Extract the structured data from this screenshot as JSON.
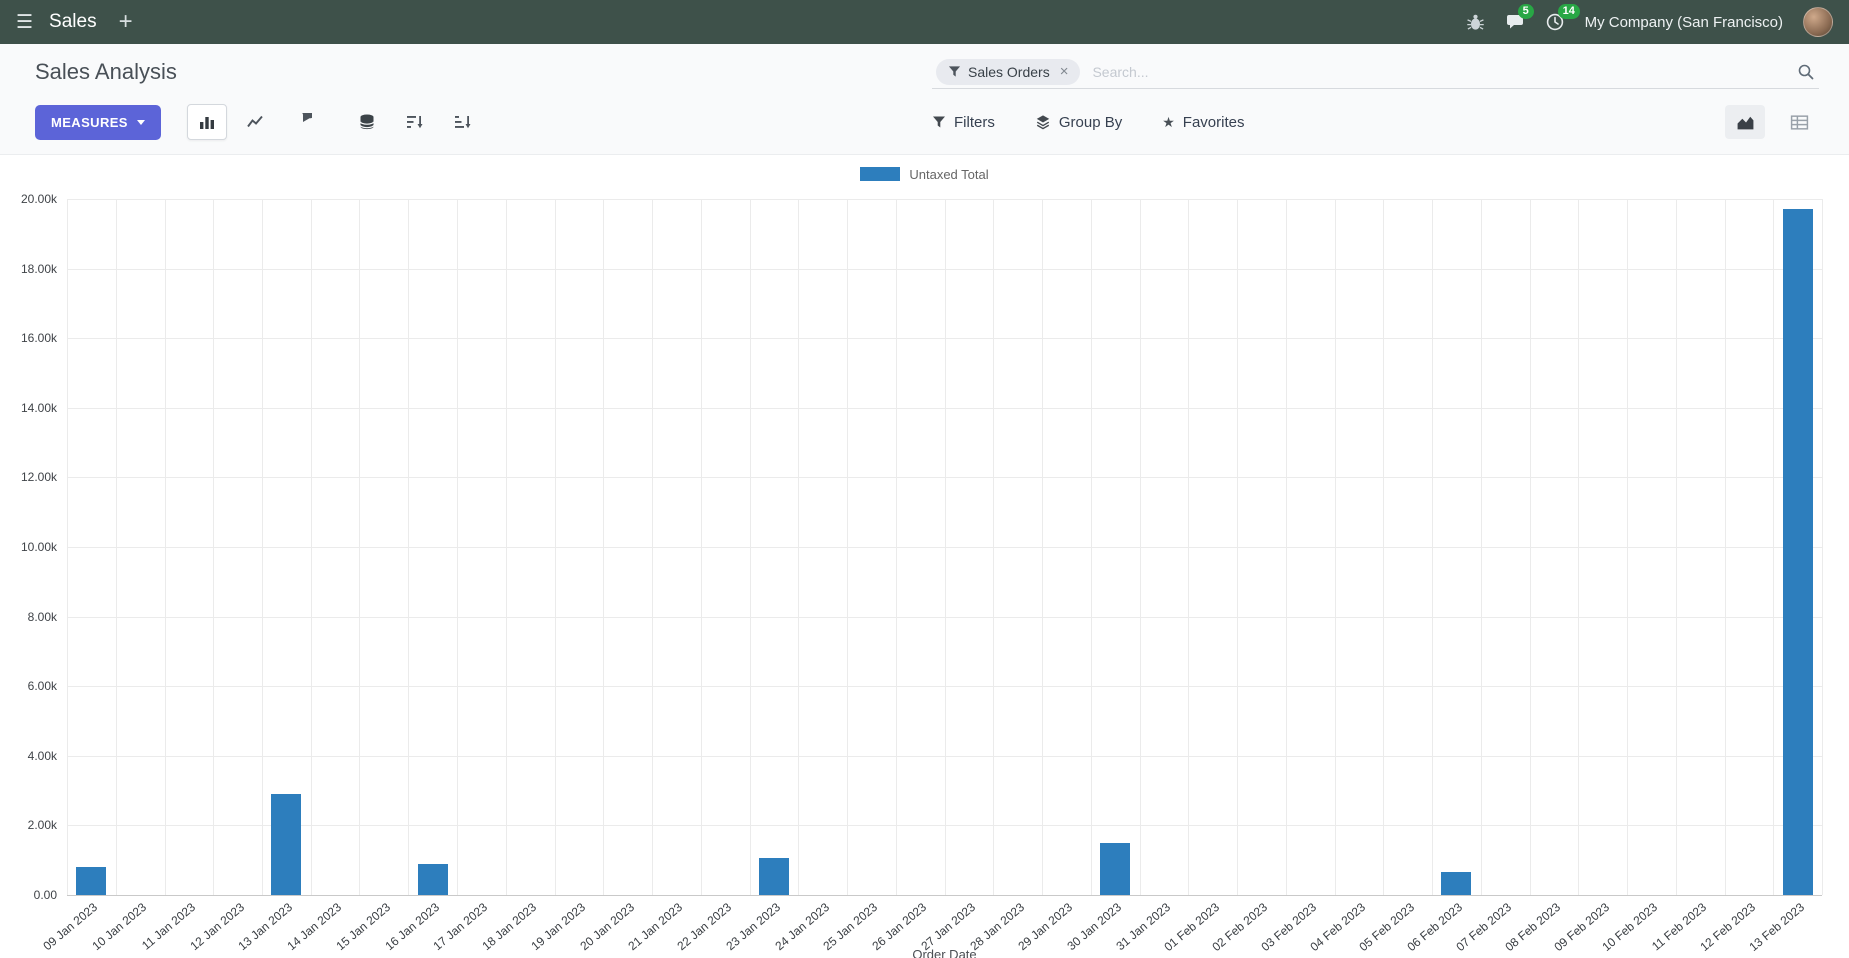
{
  "navbar": {
    "brand": "Sales",
    "plus": "+",
    "messages_badge": "5",
    "activities_badge": "14",
    "company": "My Company (San Francisco)"
  },
  "control_panel": {
    "title": "Sales Analysis",
    "search": {
      "facet_label": "Sales Orders",
      "facet_remove": "×",
      "placeholder": "Search..."
    },
    "measures_label": "MEASURES",
    "filters_label": "Filters",
    "group_by_label": "Group By",
    "favorites_label": "Favorites",
    "favorites_star": "★"
  },
  "icons": {
    "navbar": [
      "hamburger-menu",
      "plus",
      "bug-debug",
      "chat-messages",
      "clock-activities"
    ],
    "control_panel": [
      "bar-chart",
      "line-chart",
      "pie-chart",
      "stacked-database",
      "sort-descending",
      "sort-ascending",
      "filter-funnel",
      "layers-group-by",
      "star-favorites",
      "area-graph-view",
      "pivot-table-view",
      "search-magnifier"
    ]
  },
  "colors": {
    "navbar_bg": "#3e514a",
    "primary_button": "#5c64d8",
    "badge_green": "#28a745",
    "bar_blue": "#2d7ebd"
  },
  "chart_data": {
    "type": "bar",
    "title": "",
    "legend_position": "top",
    "xlabel": "Order Date",
    "ylabel": "",
    "grid": true,
    "ylim": [
      0,
      20000
    ],
    "y_ticks": [
      "0.00",
      "2.00k",
      "4.00k",
      "6.00k",
      "8.00k",
      "10.00k",
      "12.00k",
      "14.00k",
      "16.00k",
      "18.00k",
      "20.00k"
    ],
    "bar_color": "#2d7ebd",
    "categories": [
      "09 Jan 2023",
      "10 Jan 2023",
      "11 Jan 2023",
      "12 Jan 2023",
      "13 Jan 2023",
      "14 Jan 2023",
      "15 Jan 2023",
      "16 Jan 2023",
      "17 Jan 2023",
      "18 Jan 2023",
      "19 Jan 2023",
      "20 Jan 2023",
      "21 Jan 2023",
      "22 Jan 2023",
      "23 Jan 2023",
      "24 Jan 2023",
      "25 Jan 2023",
      "26 Jan 2023",
      "27 Jan 2023",
      "28 Jan 2023",
      "29 Jan 2023",
      "30 Jan 2023",
      "31 Jan 2023",
      "01 Feb 2023",
      "02 Feb 2023",
      "03 Feb 2023",
      "04 Feb 2023",
      "05 Feb 2023",
      "06 Feb 2023",
      "07 Feb 2023",
      "08 Feb 2023",
      "09 Feb 2023",
      "10 Feb 2023",
      "11 Feb 2023",
      "12 Feb 2023",
      "13 Feb 2023"
    ],
    "series": [
      {
        "name": "Untaxed Total",
        "values": [
          800,
          0,
          0,
          0,
          2900,
          0,
          0,
          900,
          0,
          0,
          0,
          0,
          0,
          0,
          1050,
          0,
          0,
          0,
          0,
          0,
          0,
          1500,
          0,
          0,
          0,
          0,
          0,
          0,
          650,
          0,
          0,
          0,
          0,
          0,
          0,
          19700
        ]
      }
    ]
  }
}
